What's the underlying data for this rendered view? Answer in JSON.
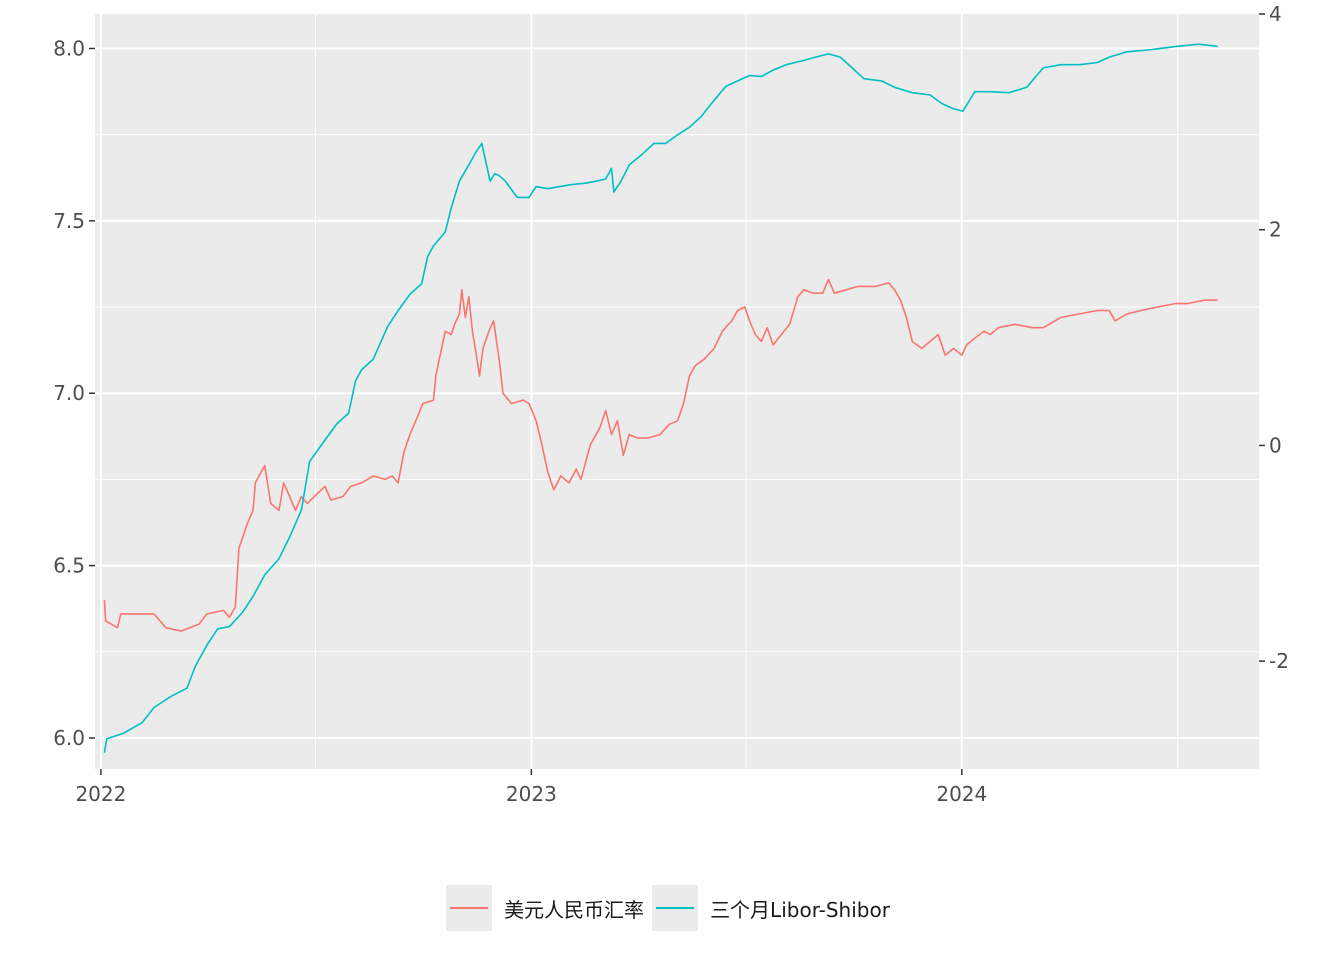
{
  "chart_data": {
    "type": "line",
    "dual_axis": true,
    "x_axis": {
      "ticks": [
        "2022",
        "2023",
        "2024"
      ],
      "range": [
        "2021-12-27",
        "2024-09-09"
      ]
    },
    "y_left": {
      "ticks": [
        "6.0",
        "6.5",
        "7.0",
        "7.5",
        "8.0"
      ],
      "range": [
        5.91,
        8.1
      ]
    },
    "y_right": {
      "ticks": [
        "-2",
        "0",
        "2",
        "4"
      ],
      "range": [
        -3.0,
        4.0
      ]
    },
    "grid": true,
    "legend": {
      "position": "bottom"
    },
    "series": [
      {
        "name": "美元人民币汇率",
        "axis": "left",
        "color": "#F8766D",
        "points": [
          [
            "2022-01-04",
            6.4
          ],
          [
            "2022-01-05",
            6.34
          ],
          [
            "2022-01-15",
            6.32
          ],
          [
            "2022-01-18",
            6.36
          ],
          [
            "2022-02-01",
            6.36
          ],
          [
            "2022-02-15",
            6.36
          ],
          [
            "2022-02-25",
            6.32
          ],
          [
            "2022-03-10",
            6.31
          ],
          [
            "2022-03-25",
            6.33
          ],
          [
            "2022-04-01",
            6.36
          ],
          [
            "2022-04-15",
            6.37
          ],
          [
            "2022-04-20",
            6.35
          ],
          [
            "2022-04-25",
            6.38
          ],
          [
            "2022-04-28",
            6.55
          ],
          [
            "2022-05-05",
            6.62
          ],
          [
            "2022-05-10",
            6.66
          ],
          [
            "2022-05-12",
            6.74
          ],
          [
            "2022-05-15",
            6.76
          ],
          [
            "2022-05-20",
            6.79
          ],
          [
            "2022-05-25",
            6.68
          ],
          [
            "2022-06-01",
            6.66
          ],
          [
            "2022-06-05",
            6.74
          ],
          [
            "2022-06-10",
            6.7
          ],
          [
            "2022-06-15",
            6.66
          ],
          [
            "2022-06-20",
            6.7
          ],
          [
            "2022-06-25",
            6.68
          ],
          [
            "2022-07-01",
            6.7
          ],
          [
            "2022-07-10",
            6.73
          ],
          [
            "2022-07-15",
            6.69
          ],
          [
            "2022-07-25",
            6.7
          ],
          [
            "2022-08-01",
            6.73
          ],
          [
            "2022-08-10",
            6.74
          ],
          [
            "2022-08-20",
            6.76
          ],
          [
            "2022-08-30",
            6.75
          ],
          [
            "2022-09-05",
            6.76
          ],
          [
            "2022-09-10",
            6.74
          ],
          [
            "2022-09-15",
            6.83
          ],
          [
            "2022-09-20",
            6.88
          ],
          [
            "2022-09-25",
            6.92
          ],
          [
            "2022-10-01",
            6.97
          ],
          [
            "2022-10-10",
            6.98
          ],
          [
            "2022-10-12",
            7.05
          ],
          [
            "2022-10-15",
            7.1
          ],
          [
            "2022-10-20",
            7.18
          ],
          [
            "2022-10-25",
            7.17
          ],
          [
            "2022-10-28",
            7.2
          ],
          [
            "2022-11-01",
            7.23
          ],
          [
            "2022-11-03",
            7.3
          ],
          [
            "2022-11-06",
            7.22
          ],
          [
            "2022-11-09",
            7.28
          ],
          [
            "2022-11-12",
            7.18
          ],
          [
            "2022-11-15",
            7.12
          ],
          [
            "2022-11-18",
            7.05
          ],
          [
            "2022-11-21",
            7.13
          ],
          [
            "2022-11-26",
            7.18
          ],
          [
            "2022-11-30",
            7.21
          ],
          [
            "2022-12-05",
            7.09
          ],
          [
            "2022-12-08",
            7.0
          ],
          [
            "2022-12-15",
            6.97
          ],
          [
            "2022-12-25",
            6.98
          ],
          [
            "2022-12-30",
            6.97
          ],
          [
            "2023-01-05",
            6.92
          ],
          [
            "2023-01-10",
            6.85
          ],
          [
            "2023-01-15",
            6.77
          ],
          [
            "2023-01-20",
            6.72
          ],
          [
            "2023-01-26",
            6.76
          ],
          [
            "2023-02-02",
            6.74
          ],
          [
            "2023-02-08",
            6.78
          ],
          [
            "2023-02-12",
            6.75
          ],
          [
            "2023-02-20",
            6.85
          ],
          [
            "2023-02-28",
            6.9
          ],
          [
            "2023-03-05",
            6.95
          ],
          [
            "2023-03-10",
            6.88
          ],
          [
            "2023-03-15",
            6.92
          ],
          [
            "2023-03-20",
            6.82
          ],
          [
            "2023-03-25",
            6.88
          ],
          [
            "2023-04-01",
            6.87
          ],
          [
            "2023-04-10",
            6.87
          ],
          [
            "2023-04-20",
            6.88
          ],
          [
            "2023-04-28",
            6.91
          ],
          [
            "2023-05-05",
            6.92
          ],
          [
            "2023-05-10",
            6.97
          ],
          [
            "2023-05-15",
            7.05
          ],
          [
            "2023-05-20",
            7.08
          ],
          [
            "2023-05-28",
            7.1
          ],
          [
            "2023-06-05",
            7.13
          ],
          [
            "2023-06-12",
            7.18
          ],
          [
            "2023-06-20",
            7.21
          ],
          [
            "2023-06-25",
            7.24
          ],
          [
            "2023-07-01",
            7.25
          ],
          [
            "2023-07-05",
            7.21
          ],
          [
            "2023-07-10",
            7.17
          ],
          [
            "2023-07-15",
            7.15
          ],
          [
            "2023-07-20",
            7.19
          ],
          [
            "2023-07-25",
            7.14
          ],
          [
            "2023-08-01",
            7.17
          ],
          [
            "2023-08-08",
            7.2
          ],
          [
            "2023-08-15",
            7.28
          ],
          [
            "2023-08-20",
            7.3
          ],
          [
            "2023-08-28",
            7.29
          ],
          [
            "2023-09-05",
            7.29
          ],
          [
            "2023-09-10",
            7.33
          ],
          [
            "2023-09-15",
            7.29
          ],
          [
            "2023-09-25",
            7.3
          ],
          [
            "2023-10-05",
            7.31
          ],
          [
            "2023-10-20",
            7.31
          ],
          [
            "2023-10-31",
            7.32
          ],
          [
            "2023-11-05",
            7.3
          ],
          [
            "2023-11-10",
            7.27
          ],
          [
            "2023-11-15",
            7.22
          ],
          [
            "2023-11-20",
            7.15
          ],
          [
            "2023-11-28",
            7.13
          ],
          [
            "2023-12-05",
            7.15
          ],
          [
            "2023-12-12",
            7.17
          ],
          [
            "2023-12-18",
            7.11
          ],
          [
            "2023-12-25",
            7.13
          ],
          [
            "2024-01-01",
            7.11
          ],
          [
            "2024-01-05",
            7.14
          ],
          [
            "2024-01-12",
            7.16
          ],
          [
            "2024-01-20",
            7.18
          ],
          [
            "2024-01-25",
            7.17
          ],
          [
            "2024-02-01",
            7.19
          ],
          [
            "2024-02-15",
            7.2
          ],
          [
            "2024-03-01",
            7.19
          ],
          [
            "2024-03-10",
            7.19
          ],
          [
            "2024-03-25",
            7.22
          ],
          [
            "2024-04-10",
            7.23
          ],
          [
            "2024-04-25",
            7.24
          ],
          [
            "2024-05-05",
            7.24
          ],
          [
            "2024-05-10",
            7.21
          ],
          [
            "2024-05-20",
            7.23
          ],
          [
            "2024-06-01",
            7.24
          ],
          [
            "2024-06-15",
            7.25
          ],
          [
            "2024-06-30",
            7.26
          ],
          [
            "2024-07-10",
            7.26
          ],
          [
            "2024-07-25",
            7.27
          ],
          [
            "2024-08-05",
            7.27
          ]
        ]
      },
      {
        "name": "三个月Libor-Shibor",
        "axis": "right",
        "color": "#00BFC4",
        "points": [
          [
            "2022-01-04",
            -2.85
          ],
          [
            "2022-01-06",
            -2.72
          ],
          [
            "2022-01-20",
            -2.67
          ],
          [
            "2022-02-05",
            -2.57
          ],
          [
            "2022-02-15",
            -2.43
          ],
          [
            "2022-03-01",
            -2.33
          ],
          [
            "2022-03-15",
            -2.25
          ],
          [
            "2022-03-22",
            -2.05
          ],
          [
            "2022-04-01",
            -1.85
          ],
          [
            "2022-04-10",
            -1.7
          ],
          [
            "2022-04-20",
            -1.68
          ],
          [
            "2022-05-01",
            -1.55
          ],
          [
            "2022-05-10",
            -1.4
          ],
          [
            "2022-05-20",
            -1.2
          ],
          [
            "2022-06-01",
            -1.05
          ],
          [
            "2022-06-10",
            -0.85
          ],
          [
            "2022-06-20",
            -0.6
          ],
          [
            "2022-06-27",
            -0.15
          ],
          [
            "2022-07-10",
            0.05
          ],
          [
            "2022-07-20",
            0.2
          ],
          [
            "2022-07-30",
            0.3
          ],
          [
            "2022-08-05",
            0.6
          ],
          [
            "2022-08-10",
            0.7
          ],
          [
            "2022-08-20",
            0.8
          ],
          [
            "2022-09-01",
            1.1
          ],
          [
            "2022-09-10",
            1.25
          ],
          [
            "2022-09-20",
            1.4
          ],
          [
            "2022-09-30",
            1.5
          ],
          [
            "2022-10-05",
            1.75
          ],
          [
            "2022-10-10",
            1.85
          ],
          [
            "2022-10-20",
            1.98
          ],
          [
            "2022-10-25",
            2.2
          ],
          [
            "2022-11-01",
            2.45
          ],
          [
            "2022-11-10",
            2.62
          ],
          [
            "2022-11-15",
            2.72
          ],
          [
            "2022-11-20",
            2.8
          ],
          [
            "2022-11-27",
            2.45
          ],
          [
            "2022-12-01",
            2.52
          ],
          [
            "2022-12-05",
            2.5
          ],
          [
            "2022-12-10",
            2.45
          ],
          [
            "2022-12-20",
            2.3
          ],
          [
            "2022-12-30",
            2.3
          ],
          [
            "2023-01-05",
            2.4
          ],
          [
            "2023-01-15",
            2.38
          ],
          [
            "2023-01-25",
            2.4
          ],
          [
            "2023-02-05",
            2.42
          ],
          [
            "2023-02-15",
            2.43
          ],
          [
            "2023-02-25",
            2.45
          ],
          [
            "2023-03-05",
            2.47
          ],
          [
            "2023-03-10",
            2.57
          ],
          [
            "2023-03-12",
            2.35
          ],
          [
            "2023-03-18",
            2.45
          ],
          [
            "2023-03-25",
            2.6
          ],
          [
            "2023-04-05",
            2.7
          ],
          [
            "2023-04-15",
            2.8
          ],
          [
            "2023-04-25",
            2.8
          ],
          [
            "2023-05-05",
            2.88
          ],
          [
            "2023-05-15",
            2.95
          ],
          [
            "2023-05-25",
            3.05
          ],
          [
            "2023-06-05",
            3.2
          ],
          [
            "2023-06-15",
            3.33
          ],
          [
            "2023-06-25",
            3.38
          ],
          [
            "2023-07-05",
            3.43
          ],
          [
            "2023-07-15",
            3.42
          ],
          [
            "2023-07-25",
            3.48
          ],
          [
            "2023-08-05",
            3.53
          ],
          [
            "2023-08-20",
            3.57
          ],
          [
            "2023-08-30",
            3.6
          ],
          [
            "2023-09-10",
            3.63
          ],
          [
            "2023-09-20",
            3.6
          ],
          [
            "2023-09-30",
            3.5
          ],
          [
            "2023-10-10",
            3.4
          ],
          [
            "2023-10-25",
            3.38
          ],
          [
            "2023-11-05",
            3.32
          ],
          [
            "2023-11-20",
            3.27
          ],
          [
            "2023-12-05",
            3.25
          ],
          [
            "2023-12-15",
            3.17
          ],
          [
            "2023-12-25",
            3.12
          ],
          [
            "2024-01-02",
            3.1
          ],
          [
            "2024-01-12",
            3.28
          ],
          [
            "2024-01-25",
            3.28
          ],
          [
            "2024-02-10",
            3.27
          ],
          [
            "2024-02-25",
            3.32
          ],
          [
            "2024-03-10",
            3.5
          ],
          [
            "2024-03-25",
            3.53
          ],
          [
            "2024-04-10",
            3.53
          ],
          [
            "2024-04-25",
            3.55
          ],
          [
            "2024-05-05",
            3.6
          ],
          [
            "2024-05-20",
            3.65
          ],
          [
            "2024-06-10",
            3.67
          ],
          [
            "2024-07-01",
            3.7
          ],
          [
            "2024-07-20",
            3.72
          ],
          [
            "2024-08-05",
            3.7
          ]
        ]
      }
    ]
  }
}
